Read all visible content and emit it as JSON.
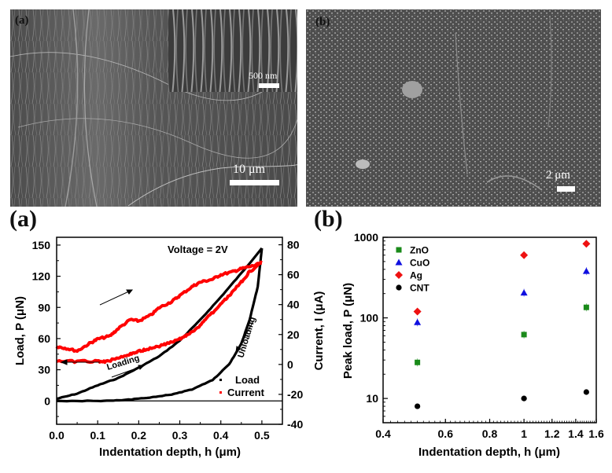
{
  "sem_images": [
    {
      "panel_label": "(a)",
      "inset_scale_bar": "500 nm",
      "scale_bar": "10 μm",
      "description_icon": "cnt-forest-sem-image"
    },
    {
      "panel_label": "(b)",
      "scale_bar": "2 μm",
      "description_icon": "coated-surface-sem-image"
    }
  ],
  "chart_data": [
    {
      "panel_label": "(a)",
      "type": "line",
      "title": "",
      "annotation": "Voltage = 2V",
      "xlabel": "Indentation depth, h (μm)",
      "ylabel_left": "Load, P (μN)",
      "ylabel_right": "Current, I (μA)",
      "xlim": [
        0.0,
        0.55
      ],
      "ylim_left": [
        -22.5,
        157.5
      ],
      "ylim_right": [
        -40,
        85
      ],
      "x_ticks": [
        "0.0",
        "0.1",
        "0.2",
        "0.3",
        "0.4",
        "0.5"
      ],
      "y_left_ticks": [
        "0",
        "30",
        "60",
        "90",
        "120",
        "150"
      ],
      "y_right_ticks": [
        "-40",
        "-20",
        "0",
        "20",
        "40",
        "60",
        "80"
      ],
      "arrow_labels": [
        "Loading",
        "Unloading"
      ],
      "legend": [
        "Load",
        "Current"
      ],
      "legend_position": "bottom-right",
      "series": [
        {
          "name": "Load",
          "axis": "left",
          "color": "#000000",
          "loading": {
            "x": [
              0.0,
              0.05,
              0.1,
              0.15,
              0.2,
              0.25,
              0.3,
              0.35,
              0.4,
              0.45,
              0.5
            ],
            "y": [
              2,
              7,
              15,
              22,
              32,
              43,
              58,
              78,
              100,
              123,
              147
            ]
          },
          "unloading": {
            "x": [
              0.5,
              0.49,
              0.47,
              0.45,
              0.42,
              0.38,
              0.33,
              0.28,
              0.22,
              0.16,
              0.1,
              0.0
            ],
            "y": [
              147,
              110,
              78,
              55,
              35,
              20,
              11,
              6,
              3,
              0.5,
              0,
              0
            ]
          }
        },
        {
          "name": "Current",
          "axis": "right",
          "color": "#ff0000",
          "loading": {
            "x": [
              0.0,
              0.02,
              0.05,
              0.08,
              0.1,
              0.13,
              0.15,
              0.18,
              0.2,
              0.23,
              0.25,
              0.28,
              0.3,
              0.33,
              0.35,
              0.38,
              0.4,
              0.43,
              0.45,
              0.48,
              0.5
            ],
            "y": [
              12,
              11,
              9,
              14,
              17,
              19,
              24,
              30,
              29,
              33,
              38,
              42,
              46,
              52,
              55,
              57,
              60,
              62,
              64,
              66,
              68
            ]
          },
          "unloading": {
            "x": [
              0.5,
              0.47,
              0.45,
              0.42,
              0.4,
              0.37,
              0.35,
              0.32,
              0.3,
              0.27,
              0.25,
              0.22,
              0.2,
              0.18,
              0.15,
              0.12,
              0.1,
              0.05,
              0.0
            ],
            "y": [
              68,
              62,
              55,
              46,
              40,
              32,
              26,
              20,
              17,
              14,
              12,
              10,
              9,
              7,
              4,
              2,
              2,
              2,
              2
            ]
          }
        }
      ]
    },
    {
      "panel_label": "(b)",
      "type": "scatter",
      "title": "",
      "xlabel": "Indentation depth, h (μm)",
      "ylabel": "Peak load, P (μN)",
      "overlapping_label_fragment": "Current, I (μA)",
      "xscale": "log",
      "yscale": "log",
      "xlim": [
        0.4,
        1.6
      ],
      "ylim": [
        5,
        1000
      ],
      "x_ticks": [
        "0.4",
        "0.6",
        "0.8",
        "1",
        "1.2",
        "1.4",
        "1.6"
      ],
      "y_ticks": [
        "10",
        "100",
        "1000"
      ],
      "legend_position": "top-left",
      "series": [
        {
          "name": "ZnO",
          "marker": "square",
          "color": "#1a8a1a",
          "x": [
            0.5,
            1.0,
            1.5
          ],
          "y": [
            28,
            62,
            135
          ]
        },
        {
          "name": "CuO",
          "marker": "triangle",
          "color": "#1010e0",
          "x": [
            0.5,
            1.0,
            1.5
          ],
          "y": [
            88,
            205,
            380
          ]
        },
        {
          "name": "Ag",
          "marker": "diamond",
          "color": "#ee1111",
          "x": [
            0.5,
            1.0,
            1.5
          ],
          "y": [
            120,
            600,
            830
          ]
        },
        {
          "name": "CNT",
          "marker": "circle",
          "color": "#000000",
          "x": [
            0.5,
            1.0,
            1.5
          ],
          "y": [
            8,
            10,
            12
          ]
        }
      ]
    }
  ]
}
